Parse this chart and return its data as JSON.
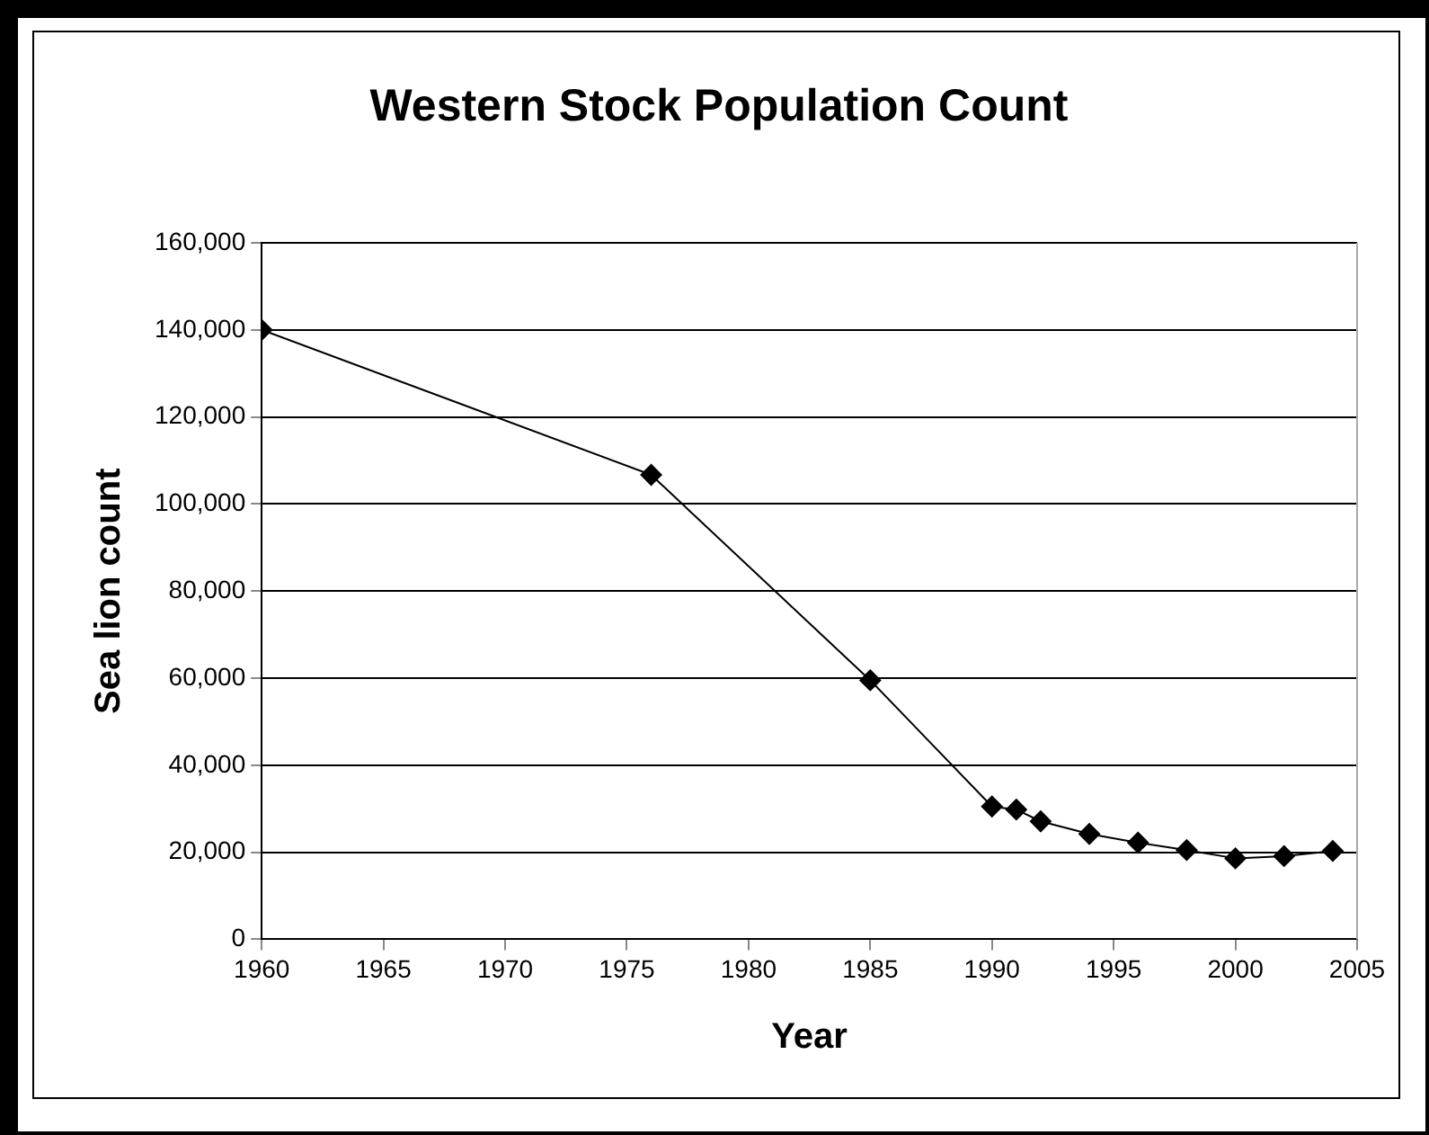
{
  "chart_data": {
    "type": "line",
    "title": "Western Stock Population Count",
    "xlabel": "Year",
    "ylabel": "Sea lion count",
    "x": [
      1960,
      1976,
      1985,
      1990,
      1991,
      1992,
      1994,
      1996,
      1998,
      2000,
      2002,
      2004
    ],
    "series": [
      {
        "color": "#000000",
        "values": [
          140000,
          106700,
          59500,
          30500,
          29800,
          27100,
          24200,
          22200,
          20500,
          18600,
          19100,
          20300
        ]
      }
    ],
    "xlim": [
      1960,
      2005
    ],
    "xticks": [
      1960,
      1965,
      1970,
      1975,
      1980,
      1985,
      1990,
      1995,
      2000,
      2005
    ],
    "ylim": [
      0,
      160000
    ],
    "yticks": [
      {
        "value": 0,
        "label": "0"
      },
      {
        "value": 20000,
        "label": "20,000"
      },
      {
        "value": 40000,
        "label": "40,000"
      },
      {
        "value": 60000,
        "label": "60,000"
      },
      {
        "value": 80000,
        "label": "80,000"
      },
      {
        "value": 100000,
        "label": "100,000"
      },
      {
        "value": 120000,
        "label": "120,000"
      },
      {
        "value": 140000,
        "label": "140,000"
      },
      {
        "value": 160000,
        "label": "160,000"
      }
    ],
    "grid": "y",
    "legend": false,
    "marker": "diamond",
    "line_style": "solid"
  }
}
